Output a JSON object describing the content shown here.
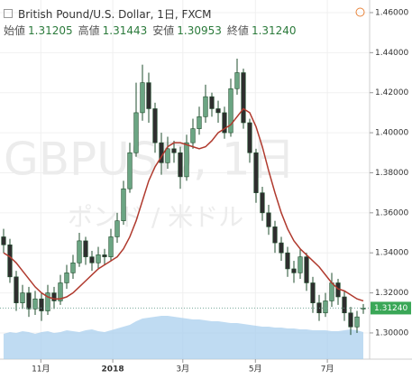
{
  "header": {
    "title": "British Pound/U.S. Dollar, 1日, FXCM",
    "ohlc": [
      {
        "label": "始値",
        "value": "1.31205"
      },
      {
        "label": "高値",
        "value": "1.31443"
      },
      {
        "label": "安値",
        "value": "1.30953"
      },
      {
        "label": "終値",
        "value": "1.31240"
      }
    ]
  },
  "watermark": {
    "symbol": "GBPUSD, 1日",
    "name": "ポンド / 米ドル"
  },
  "chart_data": {
    "type": "candlestick",
    "open": [
      1.348,
      1.344,
      1.328,
      1.315,
      1.32,
      1.312,
      1.317,
      1.311,
      1.32,
      1.316,
      1.325,
      1.33,
      1.335,
      1.346,
      1.338,
      1.335,
      1.339,
      1.338,
      1.348,
      1.356,
      1.372,
      1.39,
      1.41,
      1.425,
      1.412,
      1.395,
      1.385,
      1.392,
      1.39,
      1.378,
      1.395,
      1.402,
      1.408,
      1.418,
      1.412,
      1.41,
      1.4,
      1.422,
      1.43,
      1.405,
      1.39,
      1.37,
      1.36,
      1.353,
      1.345,
      1.34,
      1.332,
      1.33,
      1.338,
      1.325,
      1.315,
      1.31,
      1.316,
      1.325,
      1.318,
      1.31,
      1.303,
      1.31205
    ],
    "high": [
      1.352,
      1.347,
      1.331,
      1.324,
      1.323,
      1.321,
      1.32,
      1.324,
      1.323,
      1.329,
      1.334,
      1.339,
      1.35,
      1.348,
      1.341,
      1.343,
      1.342,
      1.352,
      1.36,
      1.376,
      1.395,
      1.425,
      1.434,
      1.43,
      1.415,
      1.4,
      1.398,
      1.396,
      1.393,
      1.399,
      1.407,
      1.413,
      1.424,
      1.42,
      1.416,
      1.413,
      1.427,
      1.437,
      1.432,
      1.407,
      1.392,
      1.373,
      1.364,
      1.356,
      1.348,
      1.343,
      1.336,
      1.342,
      1.34,
      1.328,
      1.319,
      1.32,
      1.33,
      1.327,
      1.321,
      1.313,
      1.311,
      1.31443
    ],
    "low": [
      1.34,
      1.325,
      1.311,
      1.312,
      1.308,
      1.309,
      1.306,
      1.309,
      1.312,
      1.314,
      1.322,
      1.327,
      1.333,
      1.334,
      1.331,
      1.332,
      1.334,
      1.336,
      1.345,
      1.354,
      1.37,
      1.388,
      1.406,
      1.405,
      1.39,
      1.379,
      1.382,
      1.385,
      1.372,
      1.376,
      1.392,
      1.399,
      1.405,
      1.408,
      1.405,
      1.397,
      1.398,
      1.419,
      1.402,
      1.385,
      1.365,
      1.356,
      1.349,
      1.34,
      1.336,
      1.328,
      1.325,
      1.327,
      1.321,
      1.31,
      1.306,
      1.308,
      1.313,
      1.314,
      1.306,
      1.299,
      1.3,
      1.30953
    ],
    "close": [
      1.344,
      1.328,
      1.315,
      1.32,
      1.312,
      1.317,
      1.311,
      1.32,
      1.316,
      1.325,
      1.33,
      1.335,
      1.346,
      1.338,
      1.335,
      1.339,
      1.338,
      1.348,
      1.356,
      1.372,
      1.39,
      1.41,
      1.425,
      1.412,
      1.395,
      1.385,
      1.392,
      1.39,
      1.378,
      1.395,
      1.402,
      1.408,
      1.418,
      1.412,
      1.41,
      1.4,
      1.422,
      1.43,
      1.405,
      1.39,
      1.37,
      1.36,
      1.353,
      1.345,
      1.34,
      1.332,
      1.33,
      1.338,
      1.325,
      1.315,
      1.31,
      1.316,
      1.325,
      1.318,
      1.31,
      1.303,
      1.308,
      1.3124
    ],
    "ma": [
      1.34,
      1.338,
      1.335,
      1.331,
      1.327,
      1.323,
      1.32,
      1.318,
      1.317,
      1.317,
      1.318,
      1.32,
      1.323,
      1.326,
      1.329,
      1.332,
      1.334,
      1.336,
      1.338,
      1.342,
      1.348,
      1.356,
      1.366,
      1.376,
      1.383,
      1.388,
      1.393,
      1.395,
      1.395,
      1.394,
      1.393,
      1.392,
      1.393,
      1.396,
      1.4,
      1.402,
      1.404,
      1.408,
      1.412,
      1.41,
      1.403,
      1.393,
      1.381,
      1.37,
      1.36,
      1.352,
      1.346,
      1.342,
      1.339,
      1.336,
      1.333,
      1.329,
      1.325,
      1.322,
      1.321,
      1.319,
      1.317,
      1.316
    ],
    "volume": [
      28,
      30,
      29,
      31,
      30,
      28,
      30,
      31,
      29,
      30,
      32,
      31,
      30,
      32,
      33,
      31,
      30,
      32,
      34,
      36,
      38,
      42,
      45,
      46,
      47,
      48,
      48,
      47,
      46,
      45,
      44,
      44,
      43,
      42,
      42,
      41,
      40,
      40,
      39,
      38,
      37,
      36,
      36,
      35,
      35,
      34,
      34,
      33,
      33,
      32,
      32,
      32,
      31,
      31,
      32,
      33,
      32,
      30
    ],
    "volume_max": 60,
    "colors": {
      "up": "#6ba583",
      "down": "#2e2e2e",
      "outline": "#1f4d2c",
      "ma": "#b03a2e",
      "volume": "#a9cfee",
      "last": "#3aa757"
    },
    "xlim": [
      -0.57,
      58
    ],
    "xticks": [
      {
        "value": 5.9,
        "label": "11月"
      },
      {
        "value": 17.3,
        "label": "2018"
      },
      {
        "value": 28.4,
        "label": "3月"
      },
      {
        "value": 39.9,
        "label": "5月"
      },
      {
        "value": 51.3,
        "label": "7月"
      }
    ],
    "ylim": [
      1.2869,
      1.4663
    ],
    "yticks": [
      {
        "value": 1.3,
        "label": "1.30000"
      },
      {
        "value": 1.32,
        "label": "1.32000"
      },
      {
        "value": 1.34,
        "label": "1.34000"
      },
      {
        "value": 1.36,
        "label": "1.36000"
      },
      {
        "value": 1.38,
        "label": "1.38000"
      },
      {
        "value": 1.4,
        "label": "1.40000"
      },
      {
        "value": 1.42,
        "label": "1.42000"
      },
      {
        "value": 1.44,
        "label": "1.44000"
      },
      {
        "value": 1.46,
        "label": "1.46000"
      }
    ],
    "last_price": {
      "value": 1.3124,
      "label": "1.31240"
    },
    "grid": true
  }
}
